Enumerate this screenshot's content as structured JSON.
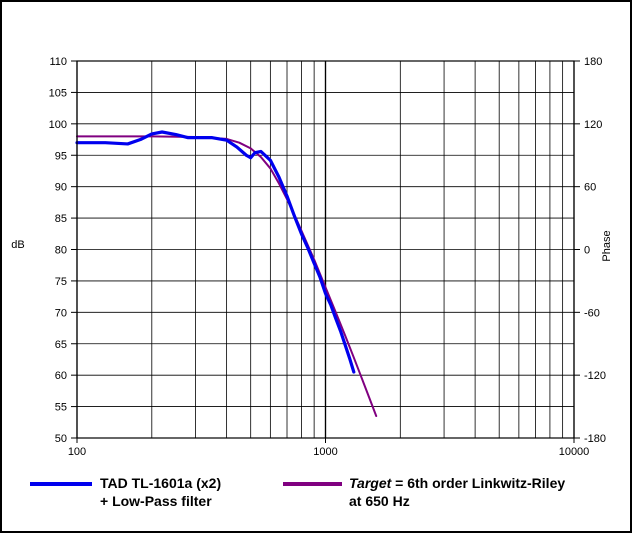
{
  "chart_data": {
    "type": "line",
    "x_scale": "log",
    "xlim": [
      100,
      10000
    ],
    "ylim_left": [
      50,
      110
    ],
    "ylim_right": [
      -180,
      180
    ],
    "ylabel_left": "dB",
    "ylabel_right": "Phase",
    "x_ticks": [
      "100",
      "1000",
      "10000"
    ],
    "y_ticks_left": [
      "110",
      "105",
      "100",
      "95",
      "90",
      "85",
      "80",
      "75",
      "70",
      "65",
      "60",
      "55",
      "50"
    ],
    "y_ticks_right": [
      "180",
      "120",
      "60",
      "0",
      "-60",
      "-120",
      "-180"
    ],
    "grid": true,
    "series": [
      {
        "name": "TAD TL-1601a (x2) + Low-Pass filter",
        "legend_lines": [
          "TAD TL-1601a (x2)",
          "+ Low-Pass filter"
        ],
        "color": "#0000ee",
        "x": [
          100,
          130,
          160,
          180,
          200,
          220,
          250,
          280,
          300,
          350,
          400,
          440,
          480,
          500,
          520,
          550,
          600,
          650,
          700,
          750,
          800,
          850,
          900,
          950,
          1000,
          1050,
          1100,
          1150,
          1200,
          1250,
          1300
        ],
        "y": [
          97,
          97,
          96.8,
          97.5,
          98.4,
          98.7,
          98.3,
          97.8,
          97.8,
          97.8,
          97.4,
          96.3,
          95.0,
          94.6,
          95.4,
          95.6,
          94.2,
          91.5,
          88.5,
          85.3,
          82.5,
          80.2,
          77.8,
          75.6,
          73.0,
          71.2,
          69.0,
          67.0,
          64.8,
          62.7,
          60.5
        ]
      },
      {
        "name": "Target = 6th order Linkwitz-Riley at 650 Hz",
        "legend_lines": [
          "Target",
          " = 6th order Linkwitz-Riley",
          "at 650 Hz"
        ],
        "color": "#800080",
        "x": [
          100,
          200,
          300,
          400,
          450,
          500,
          550,
          600,
          650,
          700,
          750,
          800,
          900,
          1000,
          1100,
          1200,
          1300,
          1400,
          1500,
          1600
        ],
        "y": [
          98,
          98,
          97.9,
          97.6,
          97.0,
          96.1,
          94.7,
          92.9,
          90.5,
          88.0,
          85.5,
          83.0,
          78.4,
          74.0,
          70.0,
          66.3,
          62.8,
          59.5,
          56.4,
          53.5
        ]
      }
    ]
  }
}
